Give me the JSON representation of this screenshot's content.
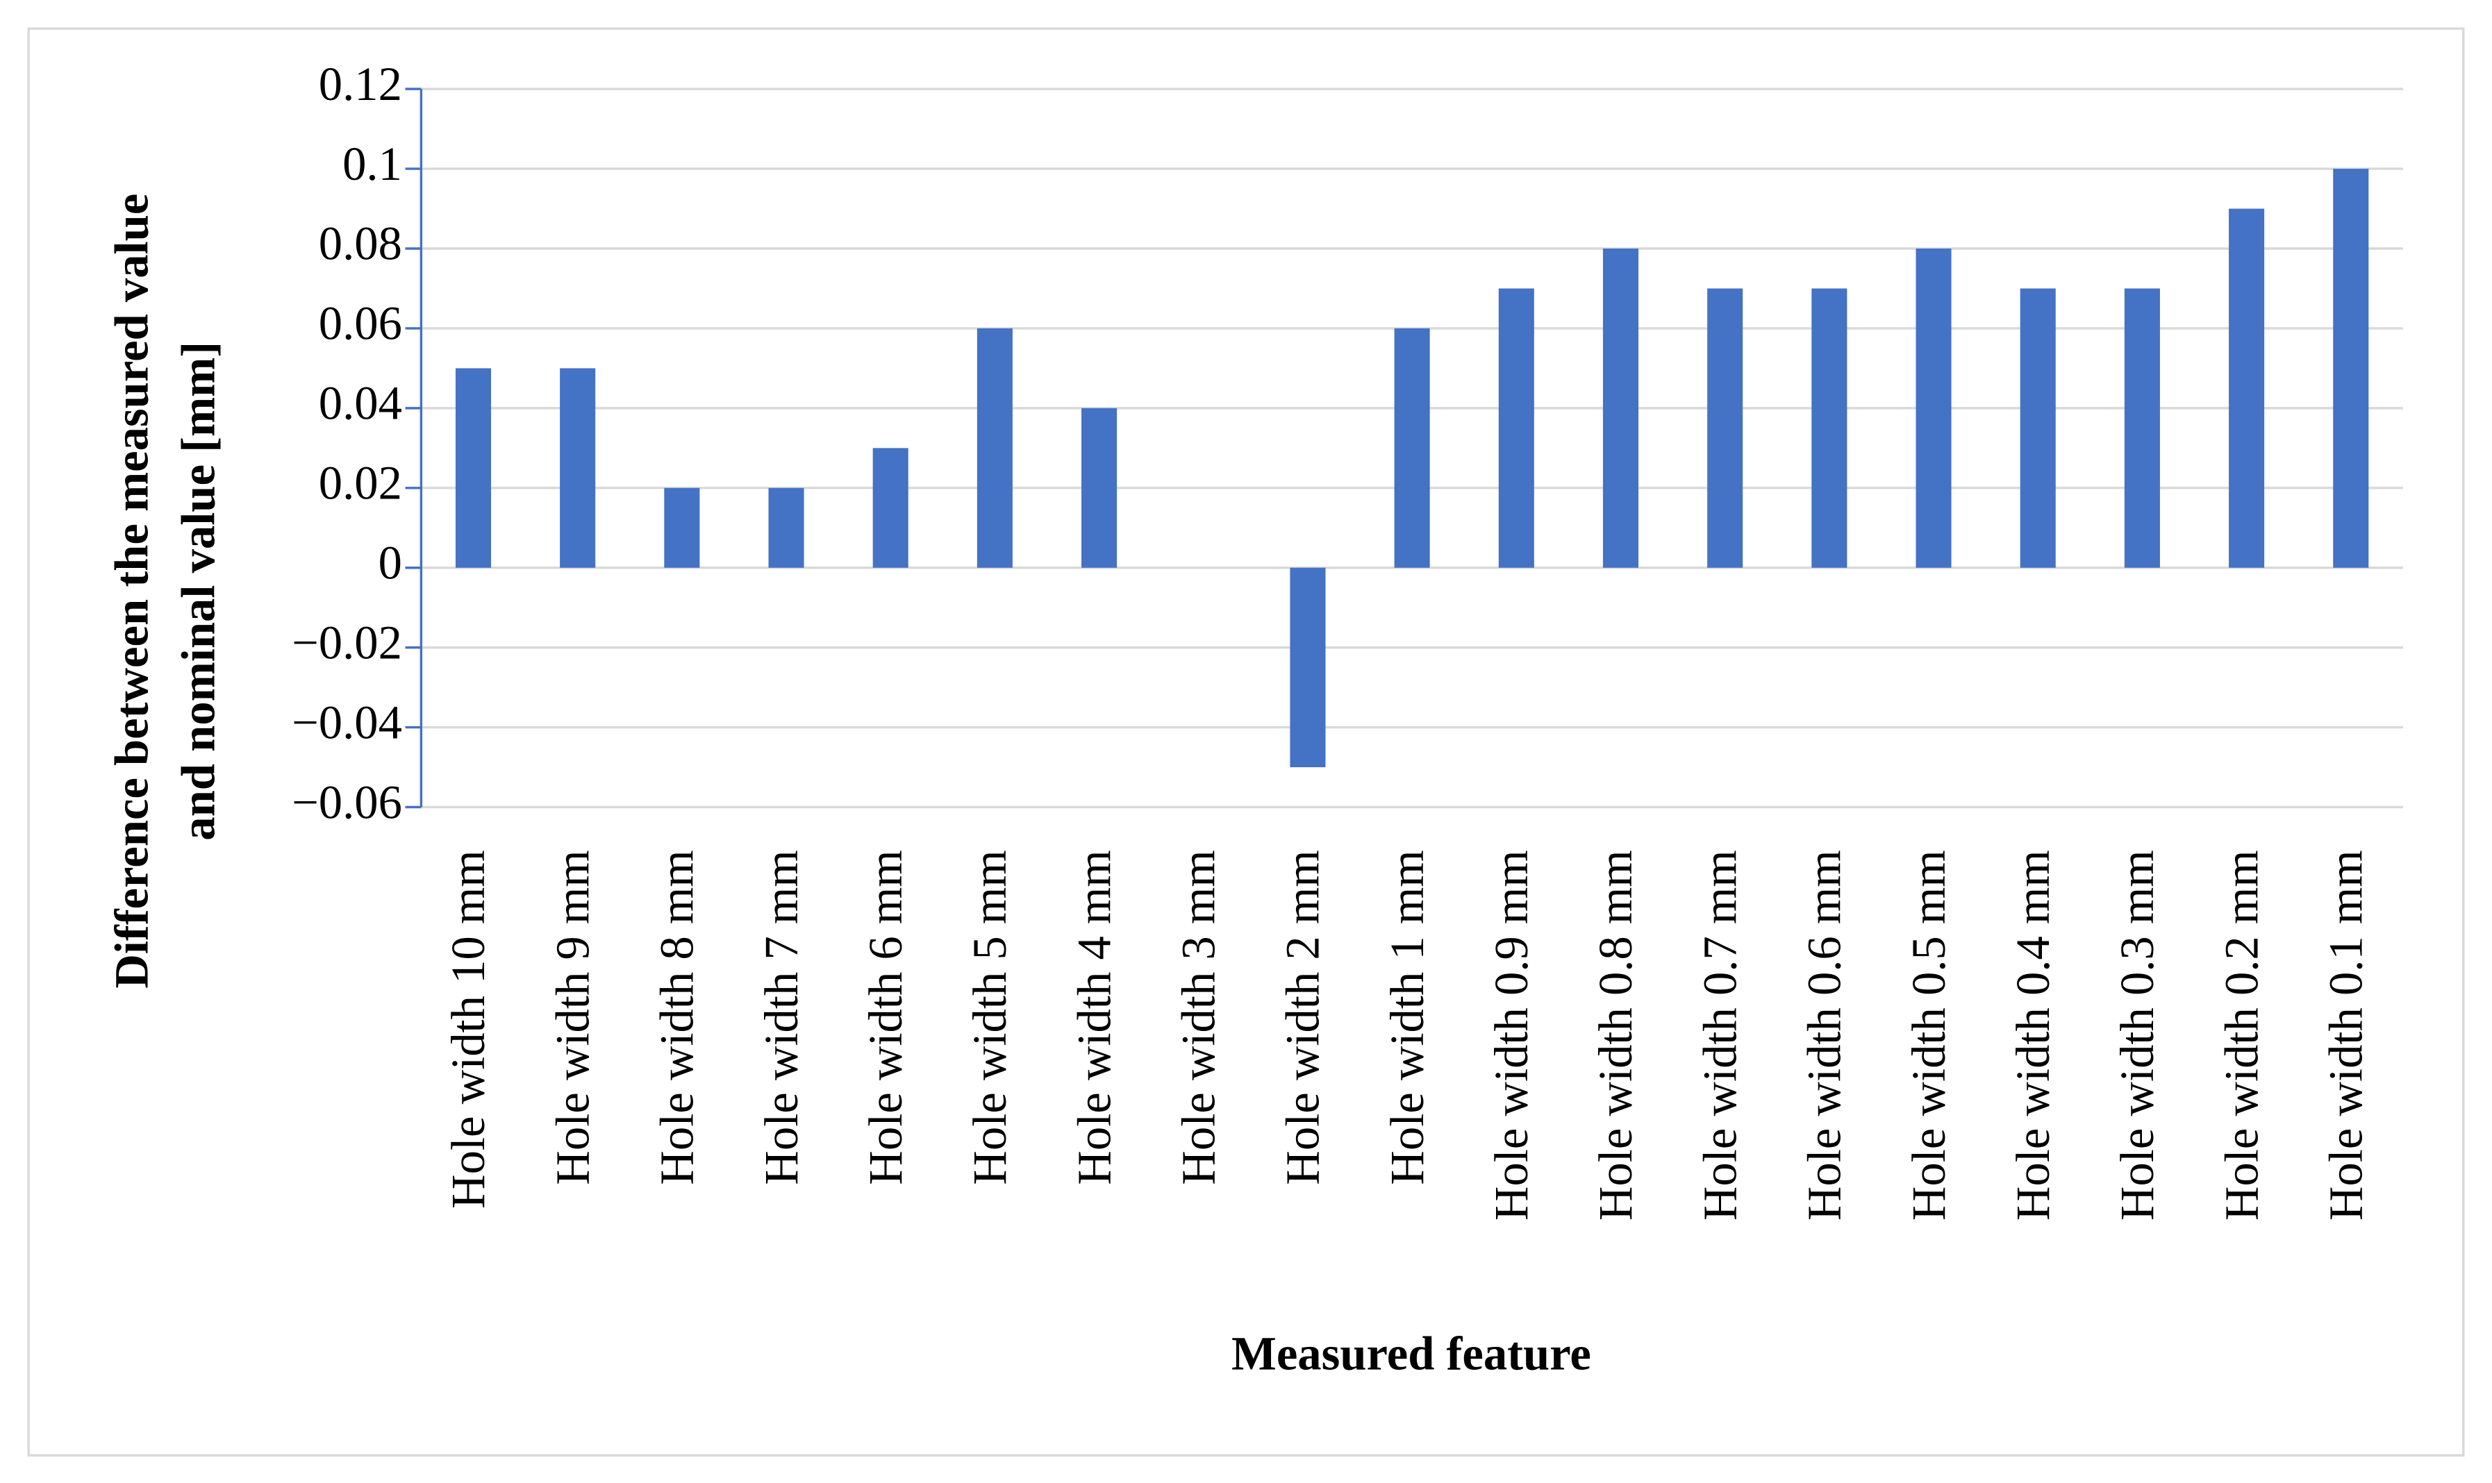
{
  "chart_data": {
    "type": "bar",
    "x_label": "Measured feature",
    "y_label": [
      "Difference between the measured value",
      "and nominal value [mm]"
    ],
    "categories": [
      "Hole width 10 mm",
      "Hole width 9 mm",
      "Hole width 8 mm",
      "Hole width 7 mm",
      "Hole width 6 mm",
      "Hole width 5 mm",
      "Hole width 4 mm",
      "Hole width 3 mm",
      "Hole width 2 mm",
      "Hole width 1 mm",
      "Hole width 0.9 mm",
      "Hole width 0.8 mm",
      "Hole width 0.7 mm",
      "Hole width 0.6 mm",
      "Hole width 0.5 mm",
      "Hole width 0.4 mm",
      "Hole width 0.3 mm",
      "Hole width 0.2 mm",
      "Hole width 0.1 mm"
    ],
    "values": [
      0.05,
      0.05,
      0.02,
      0.02,
      0.03,
      0.06,
      0.04,
      0,
      -0.05,
      0.06,
      0.07,
      0.08,
      0.07,
      0.07,
      0.08,
      0.07,
      0.07,
      0.09,
      0.1
    ],
    "color": "#4472c4",
    "ylim": [
      -0.06,
      0.12
    ],
    "yticks": [
      {
        "value": -0.06,
        "label": "−0.06"
      },
      {
        "value": -0.04,
        "label": "−0.04"
      },
      {
        "value": -0.02,
        "label": "−0.02"
      },
      0,
      0.02,
      0.04,
      0.06,
      0.08,
      0.1,
      0.12
    ],
    "grid": true
  }
}
